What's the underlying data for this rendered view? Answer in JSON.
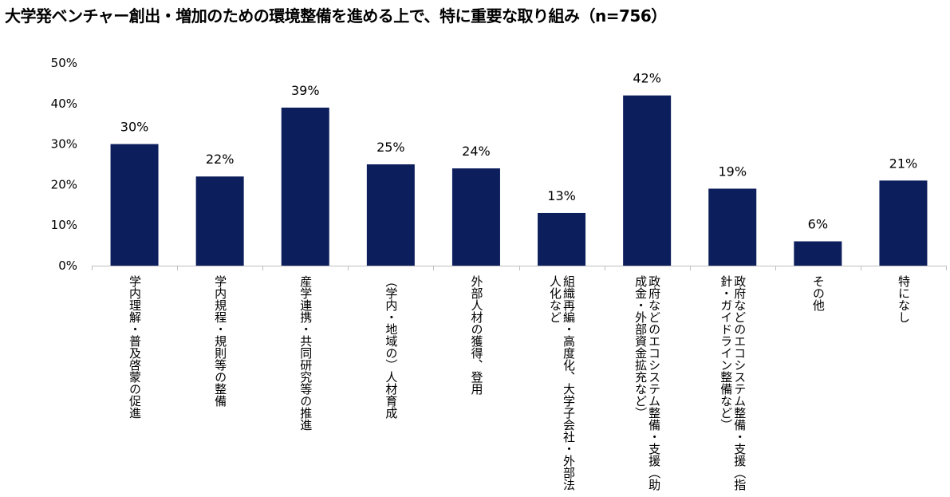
{
  "title": "大学発ベンチャー創出・増加のための環境整備を進める上で、特に重要な取り組み（n=756）",
  "colors": {
    "bar": "#0c1f5c",
    "axis": "#bfbfbf"
  },
  "chart_data": {
    "type": "bar",
    "title": "大学発ベンチャー創出・増加のための環境整備を進める上で、特に重要な取り組み（n=756）",
    "categories": [
      "学内理解・普及啓蒙の促進",
      "学内規程・規則等の整備",
      "産学連携・共同研究等の推進",
      "（学内・地域の）人材育成",
      "外部人材の獲得、登用",
      "組織再編・高度化、大学子会社・外部法人化など",
      "政府などのエコシステム整備・支援（助成金・外部資金拡充など）",
      "政府などのエコシステム整備・支援（指針・ガイドライン整備など）",
      "その他",
      "特になし"
    ],
    "values": [
      30,
      22,
      39,
      25,
      24,
      13,
      42,
      19,
      6,
      21
    ],
    "value_labels": [
      "30%",
      "22%",
      "39%",
      "25%",
      "24%",
      "13%",
      "42%",
      "19%",
      "6%",
      "21%"
    ],
    "ylim": [
      0,
      50
    ],
    "yticks": [
      "0%",
      "10%",
      "20%",
      "30%",
      "40%",
      "50%"
    ],
    "grid": false,
    "legend": "none"
  }
}
